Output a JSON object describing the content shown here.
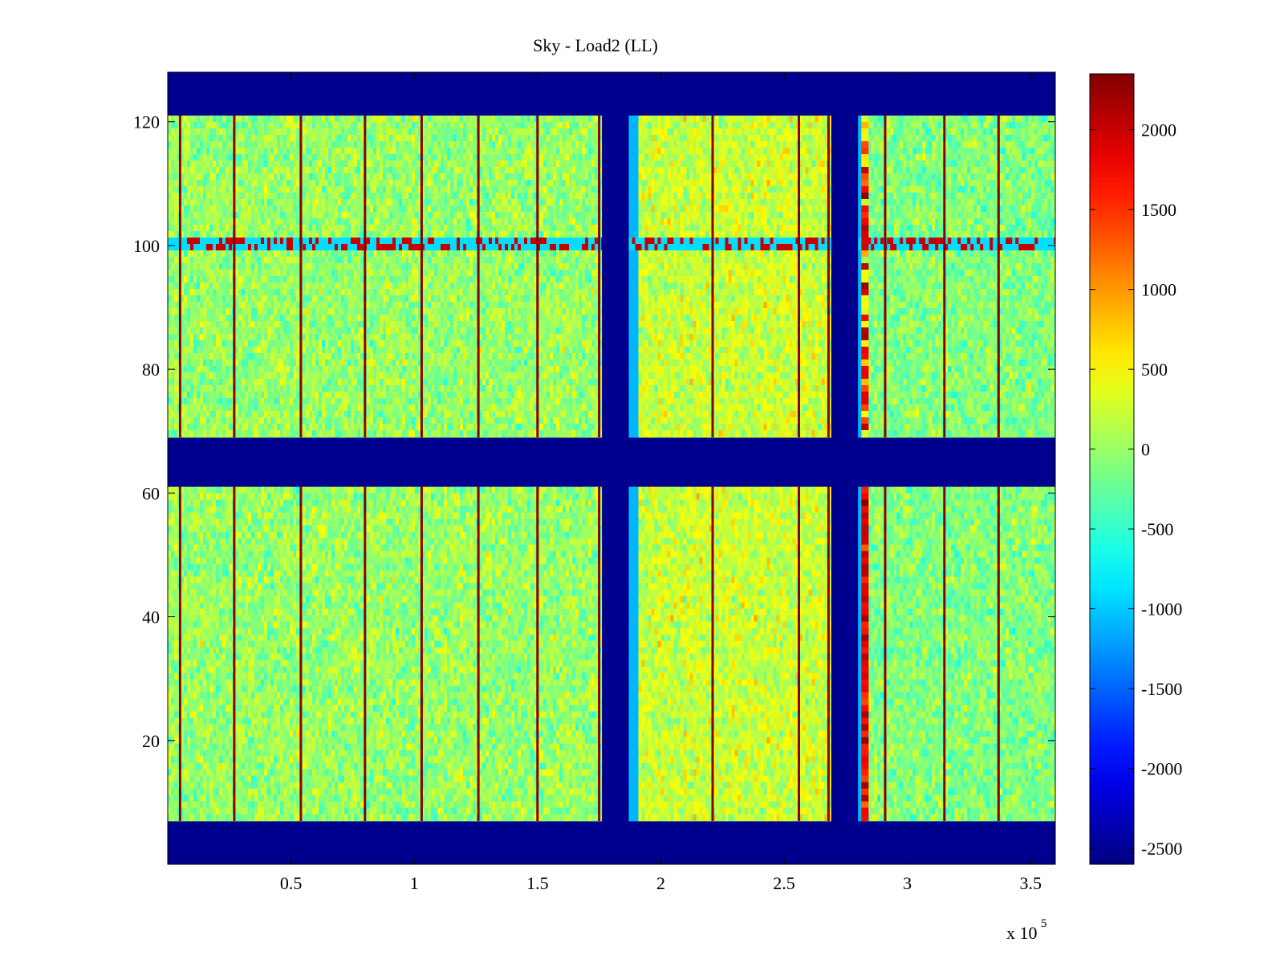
{
  "chart_data": {
    "type": "heatmap",
    "title": "Sky - Load2 (LL)",
    "xlabel": "",
    "ylabel": "",
    "x_multiplier_label": "x 10",
    "x_multiplier_exponent": "5",
    "xlim": [
      0,
      360000
    ],
    "ylim": [
      0,
      128
    ],
    "xticks": [
      {
        "value": 50000,
        "label": "0.5"
      },
      {
        "value": 100000,
        "label": "1"
      },
      {
        "value": 150000,
        "label": "1.5"
      },
      {
        "value": 200000,
        "label": "2"
      },
      {
        "value": 250000,
        "label": "2.5"
      },
      {
        "value": 300000,
        "label": "3"
      },
      {
        "value": 350000,
        "label": "3.5"
      }
    ],
    "yticks": [
      {
        "value": 20,
        "label": "20"
      },
      {
        "value": 40,
        "label": "40"
      },
      {
        "value": 60,
        "label": "60"
      },
      {
        "value": 80,
        "label": "80"
      },
      {
        "value": 100,
        "label": "100"
      },
      {
        "value": 120,
        "label": "120"
      }
    ],
    "colormap": "jet",
    "clim": [
      -2600,
      2350
    ],
    "colorbar_ticks": [
      {
        "value": 2000,
        "label": "2000"
      },
      {
        "value": 1500,
        "label": "1500"
      },
      {
        "value": 1000,
        "label": "1000"
      },
      {
        "value": 500,
        "label": "500"
      },
      {
        "value": 0,
        "label": "0"
      },
      {
        "value": -500,
        "label": "-500"
      },
      {
        "value": -1000,
        "label": "-1000"
      },
      {
        "value": -1500,
        "label": "-1500"
      },
      {
        "value": -2000,
        "label": "-2000"
      },
      {
        "value": -2500,
        "label": "-2500"
      }
    ],
    "background_value": -2600,
    "data_blocks": {
      "y_ranges": [
        [
          7,
          61
        ],
        [
          69,
          121
        ]
      ],
      "x_ranges": [
        [
          0,
          176000
        ],
        [
          187000,
          269000
        ],
        [
          280000,
          360000
        ]
      ]
    },
    "noise_mean": 0,
    "noise_std": 420,
    "noise_mean_by_x_range": [
      0,
      250,
      -100
    ],
    "spike_columns_x": [
      5000,
      27000,
      54000,
      80000,
      103000,
      126000,
      150000,
      175000,
      221000,
      256000,
      268000,
      291000,
      315000,
      337000
    ],
    "spike_value": 2300,
    "hot_column_x": 283000,
    "hot_column_value": 1800,
    "hot_row": {
      "y_range": [
        99,
        101
      ],
      "alternate_value": -900,
      "burst_value": 2000
    },
    "edge_value_near_gaps": -1100
  }
}
